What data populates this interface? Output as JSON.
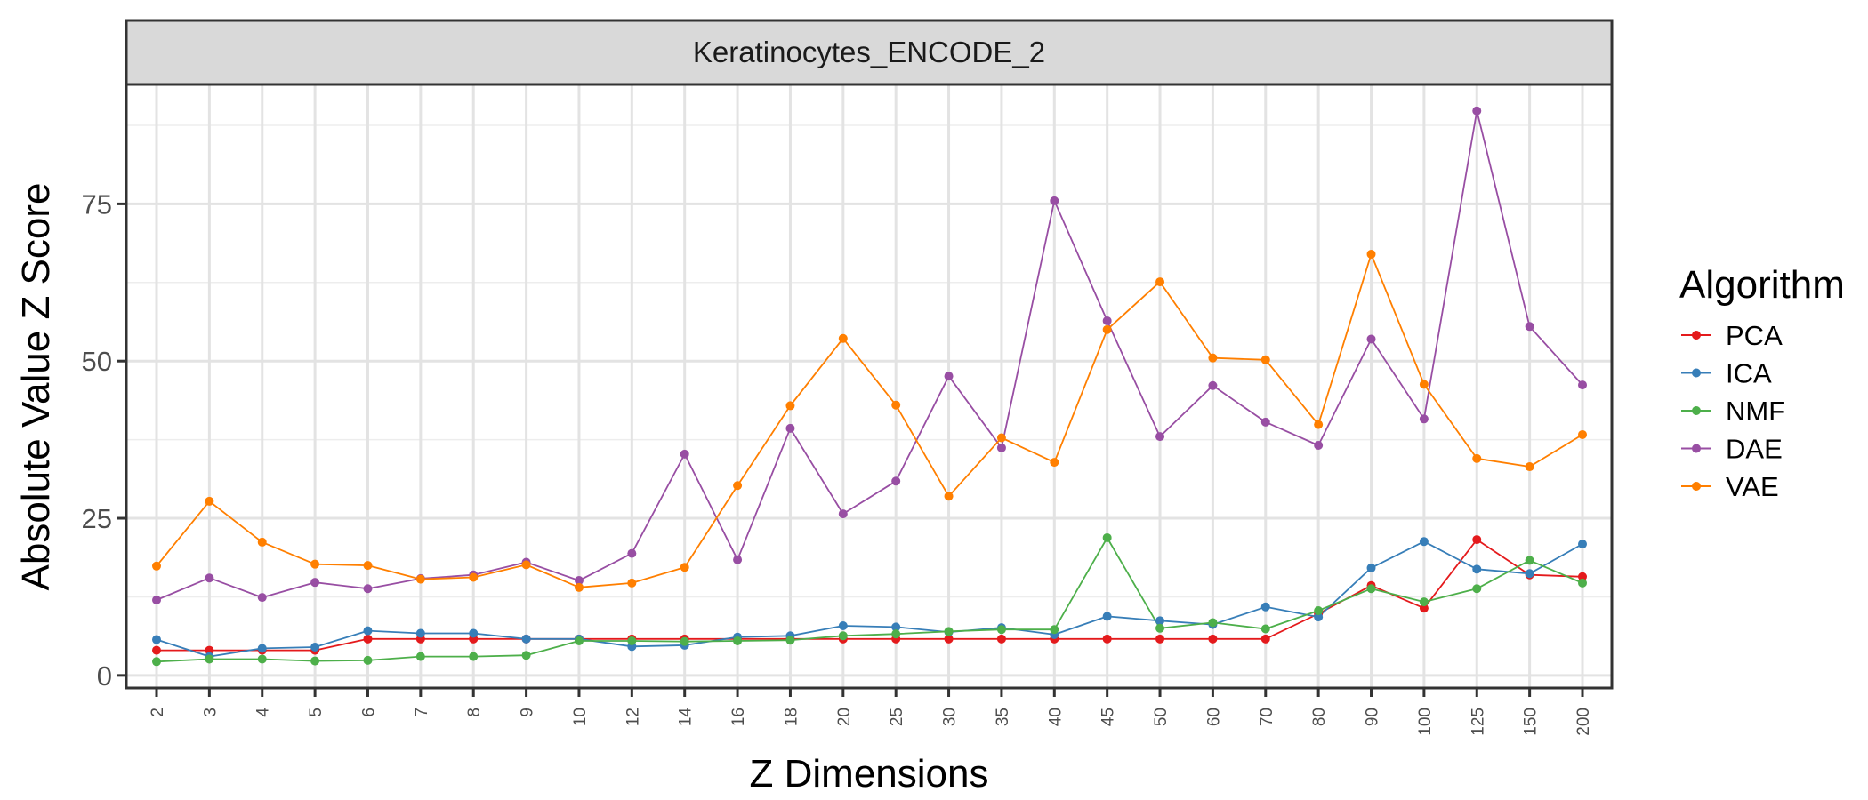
{
  "chart_data": {
    "type": "line",
    "facet_title": "Keratinocytes_ENCODE_2",
    "xlabel": "Z Dimensions",
    "ylabel": "Absolute Value Z Score",
    "categories": [
      "2",
      "3",
      "4",
      "5",
      "6",
      "7",
      "8",
      "9",
      "10",
      "12",
      "14",
      "16",
      "18",
      "20",
      "25",
      "30",
      "35",
      "40",
      "45",
      "50",
      "60",
      "70",
      "80",
      "90",
      "100",
      "125",
      "150",
      "200"
    ],
    "ylim": [
      -2,
      94
    ],
    "yticks": [
      0,
      25,
      50,
      75
    ],
    "grid": true,
    "legend": {
      "title": "Algorithm",
      "position": "right"
    },
    "series": [
      {
        "name": "PCA",
        "color": "#E41A1C",
        "values": [
          4.0,
          4.0,
          4.0,
          4.0,
          5.8,
          5.8,
          5.8,
          5.8,
          5.8,
          5.8,
          5.8,
          5.8,
          5.8,
          5.8,
          5.8,
          5.8,
          5.8,
          5.8,
          5.8,
          5.8,
          5.8,
          5.8,
          9.8,
          14.3,
          10.7,
          21.6,
          16.0,
          15.7
        ]
      },
      {
        "name": "ICA",
        "color": "#377EB8",
        "values": [
          5.7,
          3.0,
          4.3,
          4.5,
          7.1,
          6.7,
          6.7,
          5.8,
          5.8,
          4.6,
          4.8,
          6.1,
          6.3,
          7.9,
          7.7,
          6.9,
          7.6,
          6.5,
          9.4,
          8.7,
          8.1,
          10.9,
          9.3,
          17.1,
          21.3,
          16.9,
          16.2,
          20.9
        ]
      },
      {
        "name": "NMF",
        "color": "#4DAF4A",
        "values": [
          2.2,
          2.6,
          2.6,
          2.3,
          2.4,
          3.0,
          3.0,
          3.2,
          5.5,
          5.5,
          5.4,
          5.5,
          5.6,
          6.3,
          6.6,
          7.0,
          7.3,
          7.3,
          21.9,
          7.5,
          8.4,
          7.4,
          10.3,
          13.8,
          11.7,
          13.8,
          18.3,
          14.7
        ]
      },
      {
        "name": "DAE",
        "color": "#984EA3",
        "values": [
          12.0,
          15.5,
          12.4,
          14.8,
          13.8,
          15.4,
          16.0,
          18.0,
          15.1,
          19.4,
          35.2,
          18.4,
          39.3,
          25.7,
          30.9,
          47.6,
          36.2,
          75.5,
          56.4,
          38.0,
          46.1,
          40.3,
          36.6,
          53.5,
          40.8,
          89.8,
          55.5,
          46.2
        ]
      },
      {
        "name": "VAE",
        "color": "#FF7F00",
        "values": [
          17.4,
          27.7,
          21.2,
          17.7,
          17.5,
          15.3,
          15.6,
          17.6,
          14.0,
          14.7,
          17.2,
          30.2,
          42.9,
          53.6,
          43.0,
          28.5,
          37.8,
          33.9,
          55.0,
          62.6,
          50.5,
          50.2,
          39.9,
          67.0,
          46.3,
          34.5,
          33.2,
          38.3
        ]
      }
    ]
  }
}
